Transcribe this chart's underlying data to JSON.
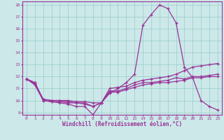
{
  "xlabel": "Windchill (Refroidissement éolien,°C)",
  "xlim": [
    -0.5,
    23.5
  ],
  "ylim": [
    8.8,
    18.3
  ],
  "yticks": [
    9,
    10,
    11,
    12,
    13,
    14,
    15,
    16,
    17,
    18
  ],
  "xticks": [
    0,
    1,
    2,
    3,
    4,
    5,
    6,
    7,
    8,
    9,
    10,
    11,
    12,
    13,
    14,
    15,
    16,
    17,
    18,
    19,
    20,
    21,
    22,
    23
  ],
  "bg_color": "#cce8e8",
  "line_color": "#993399",
  "grid_color": "#99cccc",
  "lines": [
    [
      11.8,
      11.5,
      10.0,
      9.9,
      9.8,
      9.7,
      9.5,
      9.5,
      8.8,
      9.8,
      10.6,
      11.0,
      11.5,
      12.2,
      16.3,
      17.2,
      18.0,
      17.7,
      16.5,
      12.8,
      11.9,
      10.0,
      9.5,
      9.2
    ],
    [
      11.8,
      11.4,
      10.1,
      10.0,
      10.0,
      9.9,
      9.8,
      9.7,
      9.5,
      9.8,
      10.8,
      10.8,
      11.0,
      11.3,
      11.5,
      11.5,
      11.6,
      11.7,
      11.9,
      11.8,
      12.0,
      12.0,
      12.1,
      12.2
    ],
    [
      11.8,
      11.3,
      10.0,
      9.9,
      9.9,
      9.8,
      9.8,
      9.8,
      9.5,
      9.8,
      10.7,
      10.7,
      10.9,
      11.1,
      11.3,
      11.4,
      11.5,
      11.5,
      11.6,
      11.7,
      11.9,
      11.9,
      12.0,
      12.0
    ],
    [
      11.8,
      11.5,
      10.1,
      10.0,
      10.0,
      10.0,
      9.9,
      9.9,
      9.8,
      9.8,
      11.0,
      11.1,
      11.2,
      11.5,
      11.7,
      11.8,
      11.9,
      12.0,
      12.2,
      12.5,
      12.8,
      12.9,
      13.0,
      13.1
    ]
  ]
}
